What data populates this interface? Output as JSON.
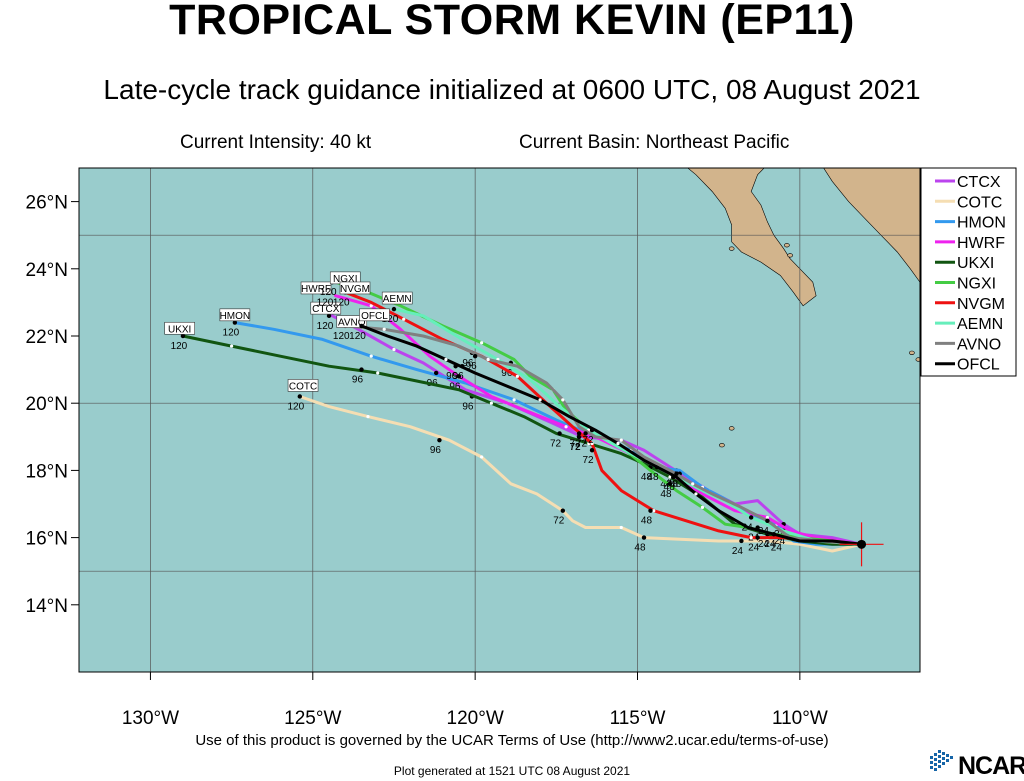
{
  "header": {
    "title": "TROPICAL STORM KEVIN (EP11)",
    "subtitle": "Late-cycle track guidance initialized at 0600 UTC, 08 August 2021",
    "intensity": "Current Intensity: 40 kt",
    "basin": "Current Basin: Northeast Pacific"
  },
  "footer": {
    "terms": "Use of this product is governed by the UCAR Terms of Use (http://www2.ucar.edu/terms-of-use)",
    "generated": "Plot generated at 1521 UTC   08 August 2021",
    "logo_text": "NCAR"
  },
  "map": {
    "lon_range": [
      -132.2,
      -106.3
    ],
    "lat_range": [
      12.0,
      27.0
    ],
    "grid_lon": [
      -130,
      -125,
      -120,
      -115,
      -110
    ],
    "grid_lat": [
      15,
      20,
      25
    ],
    "lon_labels": [
      {
        "value": -130,
        "label": "130°W"
      },
      {
        "value": -125,
        "label": "125°W"
      },
      {
        "value": -120,
        "label": "120°W"
      },
      {
        "value": -115,
        "label": "115°W"
      },
      {
        "value": -110,
        "label": "110°W"
      }
    ],
    "lat_labels": [
      {
        "value": 26,
        "label": "26°N"
      },
      {
        "value": 24,
        "label": "24°N"
      },
      {
        "value": 22,
        "label": "22°N"
      },
      {
        "value": 20,
        "label": "20°N"
      },
      {
        "value": 18,
        "label": "18°N"
      },
      {
        "value": 16,
        "label": "16°N"
      },
      {
        "value": 14,
        "label": "14°N"
      }
    ],
    "ocean_color": "#99cccc",
    "land_color": "#d2b48c",
    "storm_position": {
      "lon": -108.1,
      "lat": 15.8
    }
  },
  "legend": [
    {
      "name": "CTCX",
      "color": "#bb44ee"
    },
    {
      "name": "COTC",
      "color": "#f5deb3"
    },
    {
      "name": "HMON",
      "color": "#3399ee"
    },
    {
      "name": "HWRF",
      "color": "#ee22ee"
    },
    {
      "name": "UKXI",
      "color": "#115511"
    },
    {
      "name": "NGXI",
      "color": "#44cc44"
    },
    {
      "name": "NVGM",
      "color": "#ee1111"
    },
    {
      "name": "AEMN",
      "color": "#66eebb"
    },
    {
      "name": "AVNO",
      "color": "#808080"
    },
    {
      "name": "OFCL",
      "color": "#000000"
    }
  ],
  "tracks": [
    {
      "name": "CTCX",
      "color": "#bb44ee",
      "label": "CTCX",
      "label_pos": [
        -124.6,
        22.8
      ],
      "points": [
        [
          -108.1,
          15.8
        ],
        [
          -109.0,
          16.0
        ],
        [
          -110.0,
          16.1
        ],
        [
          -110.5,
          16.4
        ],
        [
          -111.3,
          17.1
        ],
        [
          -112.0,
          17.0
        ],
        [
          -112.8,
          17.4
        ],
        [
          -114.0,
          18.1
        ],
        [
          -114.8,
          18.6
        ],
        [
          -115.5,
          18.9
        ],
        [
          -116.7,
          19.0
        ],
        [
          -117.6,
          19.4
        ],
        [
          -119.0,
          20.0
        ],
        [
          -120.3,
          20.4
        ],
        [
          -121.6,
          21.2
        ],
        [
          -122.5,
          21.6
        ],
        [
          -123.6,
          22.2
        ],
        [
          -124.4,
          22.6
        ]
      ],
      "taus": [
        {
          "t": "24",
          "at": [
            -110.5,
            16.4
          ]
        },
        {
          "t": "48",
          "at": [
            -113.8,
            18.0
          ]
        },
        {
          "t": "72",
          "at": [
            -116.8,
            19.0
          ]
        },
        {
          "t": "96",
          "at": [
            -120.1,
            20.2
          ]
        },
        {
          "t": "120",
          "at": [
            -124.5,
            22.6
          ]
        }
      ]
    },
    {
      "name": "COTC",
      "color": "#f5deb3",
      "label": "COTC",
      "label_pos": [
        -125.3,
        20.5
      ],
      "points": [
        [
          -108.1,
          15.8
        ],
        [
          -109.0,
          15.6
        ],
        [
          -110.0,
          15.8
        ],
        [
          -111.0,
          15.9
        ],
        [
          -112.5,
          15.9
        ],
        [
          -114.8,
          16.0
        ],
        [
          -115.5,
          16.3
        ],
        [
          -116.6,
          16.3
        ],
        [
          -117.0,
          16.5
        ],
        [
          -117.3,
          16.8
        ],
        [
          -118.1,
          17.3
        ],
        [
          -118.9,
          17.6
        ],
        [
          -119.8,
          18.4
        ],
        [
          -120.8,
          18.9
        ],
        [
          -122.0,
          19.3
        ],
        [
          -123.3,
          19.6
        ],
        [
          -124.5,
          19.9
        ],
        [
          -125.4,
          20.2
        ]
      ],
      "taus": [
        {
          "t": "24",
          "at": [
            -111.8,
            15.9
          ]
        },
        {
          "t": "48",
          "at": [
            -114.8,
            16.0
          ]
        },
        {
          "t": "72",
          "at": [
            -117.3,
            16.8
          ]
        },
        {
          "t": "96",
          "at": [
            -121.1,
            18.9
          ]
        },
        {
          "t": "120",
          "at": [
            -125.4,
            20.2
          ]
        }
      ]
    },
    {
      "name": "HMON",
      "color": "#3399ee",
      "label": "HMON",
      "label_pos": [
        -127.4,
        22.6
      ],
      "points": [
        [
          -108.1,
          15.8
        ],
        [
          -109.5,
          15.8
        ],
        [
          -110.2,
          15.9
        ],
        [
          -110.7,
          16.4
        ],
        [
          -111.5,
          16.7
        ],
        [
          -112.4,
          17.2
        ],
        [
          -113.0,
          17.5
        ],
        [
          -113.7,
          18.0
        ],
        [
          -114.5,
          18.1
        ],
        [
          -115.2,
          18.6
        ],
        [
          -116.3,
          19.0
        ],
        [
          -117.5,
          19.5
        ],
        [
          -118.8,
          20.1
        ],
        [
          -120.3,
          20.6
        ],
        [
          -121.8,
          21.0
        ],
        [
          -123.2,
          21.4
        ],
        [
          -124.7,
          21.9
        ],
        [
          -126.2,
          22.2
        ],
        [
          -127.4,
          22.4
        ]
      ],
      "taus": [
        {
          "t": "24",
          "at": [
            -110.6,
            16.0
          ]
        },
        {
          "t": "48",
          "at": [
            -113.7,
            17.9
          ]
        },
        {
          "t": "96",
          "at": [
            -121.2,
            20.9
          ]
        },
        {
          "t": "120",
          "at": [
            -127.4,
            22.4
          ]
        }
      ]
    },
    {
      "name": "HWRF",
      "color": "#ee22ee",
      "label": "HWRF",
      "label_pos": [
        -124.9,
        23.4
      ],
      "points": [
        [
          -108.1,
          15.8
        ],
        [
          -109.5,
          16.0
        ],
        [
          -110.3,
          16.2
        ],
        [
          -111.0,
          16.6
        ],
        [
          -112.0,
          16.8
        ],
        [
          -113.0,
          17.3
        ],
        [
          -114.0,
          17.9
        ],
        [
          -115.0,
          18.4
        ],
        [
          -116.3,
          19.0
        ],
        [
          -117.2,
          19.3
        ],
        [
          -118.5,
          19.8
        ],
        [
          -119.5,
          20.2
        ],
        [
          -120.5,
          20.8
        ],
        [
          -121.4,
          21.4
        ],
        [
          -122.3,
          22.2
        ],
        [
          -123.2,
          22.9
        ],
        [
          -124.3,
          23.2
        ]
      ],
      "taus": [
        {
          "t": "24",
          "at": [
            -110.5,
            16.2
          ]
        },
        {
          "t": "48",
          "at": [
            -114.0,
            17.9
          ]
        },
        {
          "t": "72",
          "at": [
            -116.8,
            19.0
          ]
        },
        {
          "t": "96",
          "at": [
            -120.5,
            20.8
          ]
        },
        {
          "t": "120",
          "at": [
            -124.5,
            23.3
          ]
        }
      ]
    },
    {
      "name": "UKXI",
      "color": "#115511",
      "label": "UKXI",
      "label_pos": [
        -129.1,
        22.2
      ],
      "points": [
        [
          -108.1,
          15.8
        ],
        [
          -109.0,
          15.8
        ],
        [
          -110.0,
          15.9
        ],
        [
          -111.0,
          16.1
        ],
        [
          -112.0,
          16.4
        ],
        [
          -113.0,
          17.2
        ],
        [
          -114.0,
          17.8
        ],
        [
          -114.8,
          18.2
        ],
        [
          -115.5,
          18.5
        ],
        [
          -116.5,
          18.8
        ],
        [
          -117.5,
          19.1
        ],
        [
          -118.5,
          19.6
        ],
        [
          -119.5,
          20.0
        ],
        [
          -120.5,
          20.4
        ],
        [
          -121.5,
          20.6
        ],
        [
          -123.0,
          20.9
        ],
        [
          -124.5,
          21.1
        ],
        [
          -126.0,
          21.4
        ],
        [
          -127.5,
          21.7
        ],
        [
          -129.0,
          22.0
        ]
      ],
      "taus": [
        {
          "t": "24",
          "at": [
            -111.0,
            16.1
          ]
        },
        {
          "t": "48",
          "at": [
            -114.6,
            18.1
          ]
        },
        {
          "t": "72",
          "at": [
            -117.4,
            19.1
          ]
        },
        {
          "t": "96",
          "at": [
            -123.5,
            21.0
          ]
        },
        {
          "t": "120",
          "at": [
            -129.0,
            22.0
          ]
        }
      ]
    },
    {
      "name": "NGXI",
      "color": "#44cc44",
      "label": "NGXI",
      "label_pos": [
        -124.0,
        23.7
      ],
      "points": [
        [
          -108.1,
          15.8
        ],
        [
          -109.0,
          15.9
        ],
        [
          -110.0,
          16.0
        ],
        [
          -110.8,
          16.1
        ],
        [
          -111.6,
          16.3
        ],
        [
          -112.3,
          16.4
        ],
        [
          -113.0,
          16.9
        ],
        [
          -113.8,
          17.4
        ],
        [
          -114.6,
          18.0
        ],
        [
          -115.5,
          18.7
        ],
        [
          -116.4,
          19.1
        ],
        [
          -117.2,
          19.8
        ],
        [
          -117.6,
          20.4
        ],
        [
          -118.3,
          20.8
        ],
        [
          -118.8,
          21.3
        ],
        [
          -119.8,
          21.8
        ],
        [
          -121.0,
          22.3
        ],
        [
          -122.3,
          22.9
        ],
        [
          -123.3,
          23.3
        ],
        [
          -124.3,
          23.6
        ]
      ],
      "taus": [
        {
          "t": "24",
          "at": [
            -111.3,
            16.3
          ]
        },
        {
          "t": "48",
          "at": [
            -114.0,
            17.6
          ]
        },
        {
          "t": "72",
          "at": [
            -116.8,
            19.0
          ]
        },
        {
          "t": "96",
          "at": [
            -118.9,
            21.2
          ]
        },
        {
          "t": "120",
          "at": [
            -124.4,
            23.6
          ]
        }
      ]
    },
    {
      "name": "NVGM",
      "color": "#ee1111",
      "label": "NVGM",
      "label_pos": [
        -123.7,
        23.4
      ],
      "points": [
        [
          -108.1,
          15.8
        ],
        [
          -109.5,
          15.9
        ],
        [
          -110.5,
          16.0
        ],
        [
          -111.5,
          16.0
        ],
        [
          -112.5,
          16.2
        ],
        [
          -113.5,
          16.5
        ],
        [
          -114.5,
          16.8
        ],
        [
          -115.5,
          17.4
        ],
        [
          -116.1,
          18.0
        ],
        [
          -116.4,
          18.8
        ],
        [
          -117.0,
          19.3
        ],
        [
          -117.8,
          20.0
        ],
        [
          -118.7,
          20.8
        ],
        [
          -119.8,
          21.4
        ],
        [
          -121.0,
          21.9
        ],
        [
          -122.2,
          22.5
        ],
        [
          -123.2,
          23.0
        ],
        [
          -124.0,
          23.3
        ]
      ],
      "taus": [
        {
          "t": "24",
          "at": [
            -111.3,
            16.0
          ]
        },
        {
          "t": "48",
          "at": [
            -114.6,
            16.8
          ]
        },
        {
          "t": "72",
          "at": [
            -116.4,
            18.6
          ]
        },
        {
          "t": "96",
          "at": [
            -120.1,
            21.5
          ]
        },
        {
          "t": "120",
          "at": [
            -124.0,
            23.3
          ]
        }
      ]
    },
    {
      "name": "AEMN",
      "color": "#66eebb",
      "label": "AEMN",
      "label_pos": [
        -122.4,
        23.1
      ],
      "points": [
        [
          -108.1,
          15.8
        ],
        [
          -109.5,
          15.9
        ],
        [
          -110.5,
          16.2
        ],
        [
          -111.5,
          16.6
        ],
        [
          -112.3,
          17.1
        ],
        [
          -113.0,
          17.4
        ],
        [
          -114.0,
          17.9
        ],
        [
          -114.8,
          18.3
        ],
        [
          -115.6,
          18.7
        ],
        [
          -116.5,
          19.2
        ],
        [
          -117.4,
          19.9
        ],
        [
          -118.3,
          20.7
        ],
        [
          -119.3,
          21.3
        ],
        [
          -120.4,
          21.9
        ],
        [
          -121.6,
          22.6
        ],
        [
          -122.5,
          22.8
        ]
      ],
      "taus": [
        {
          "t": "24",
          "at": [
            -111.5,
            16.6
          ]
        },
        {
          "t": "48",
          "at": [
            -114.4,
            18.1
          ]
        },
        {
          "t": "72",
          "at": [
            -116.8,
            19.1
          ]
        },
        {
          "t": "96",
          "at": [
            -120.4,
            21.1
          ]
        },
        {
          "t": "120",
          "at": [
            -122.5,
            22.8
          ]
        }
      ]
    },
    {
      "name": "AVNO",
      "color": "#808080",
      "label": "AVNO",
      "label_pos": [
        -123.8,
        22.4
      ],
      "points": [
        [
          -108.1,
          15.8
        ],
        [
          -109.3,
          15.9
        ],
        [
          -110.3,
          16.0
        ],
        [
          -111.0,
          16.5
        ],
        [
          -111.8,
          16.9
        ],
        [
          -112.7,
          17.3
        ],
        [
          -113.3,
          17.6
        ],
        [
          -114.0,
          18.0
        ],
        [
          -114.8,
          18.4
        ],
        [
          -115.5,
          18.9
        ],
        [
          -116.3,
          19.0
        ],
        [
          -116.8,
          19.3
        ],
        [
          -117.3,
          20.1
        ],
        [
          -117.8,
          20.6
        ],
        [
          -118.7,
          21.1
        ],
        [
          -119.6,
          21.3
        ],
        [
          -120.5,
          21.7
        ],
        [
          -121.6,
          22.0
        ],
        [
          -122.8,
          22.2
        ],
        [
          -124.0,
          22.3
        ]
      ],
      "taus": [
        {
          "t": "24",
          "at": [
            -111.0,
            16.5
          ]
        },
        {
          "t": "48",
          "at": [
            -113.8,
            17.9
          ]
        },
        {
          "t": "72",
          "at": [
            -116.6,
            19.1
          ]
        },
        {
          "t": "96",
          "at": [
            -120.0,
            21.4
          ]
        },
        {
          "t": "120",
          "at": [
            -124.0,
            22.3
          ]
        }
      ]
    },
    {
      "name": "OFCL",
      "color": "#000000",
      "label": "OFCL",
      "label_pos": [
        -123.1,
        22.6
      ],
      "points": [
        [
          -108.1,
          15.8
        ],
        [
          -109.0,
          15.9
        ],
        [
          -110.0,
          15.9
        ],
        [
          -110.8,
          16.1
        ],
        [
          -111.6,
          16.3
        ],
        [
          -112.5,
          16.8
        ],
        [
          -113.2,
          17.3
        ],
        [
          -113.8,
          17.8
        ],
        [
          -114.8,
          18.3
        ],
        [
          -115.6,
          18.8
        ],
        [
          -116.3,
          19.2
        ],
        [
          -117.1,
          19.6
        ],
        [
          -118.0,
          20.1
        ],
        [
          -119.0,
          20.5
        ],
        [
          -120.0,
          20.9
        ],
        [
          -120.9,
          21.3
        ],
        [
          -121.8,
          21.7
        ],
        [
          -122.7,
          22.0
        ],
        [
          -123.5,
          22.3
        ]
      ],
      "taus": [
        {
          "t": "24",
          "at": [
            -110.8,
            16.1
          ]
        },
        {
          "t": "48",
          "at": [
            -113.9,
            17.8
          ]
        },
        {
          "t": "72",
          "at": [
            -116.4,
            19.2
          ]
        },
        {
          "t": "96",
          "at": [
            -120.6,
            21.1
          ]
        },
        {
          "t": "120",
          "at": [
            -123.5,
            22.3
          ]
        }
      ]
    }
  ]
}
